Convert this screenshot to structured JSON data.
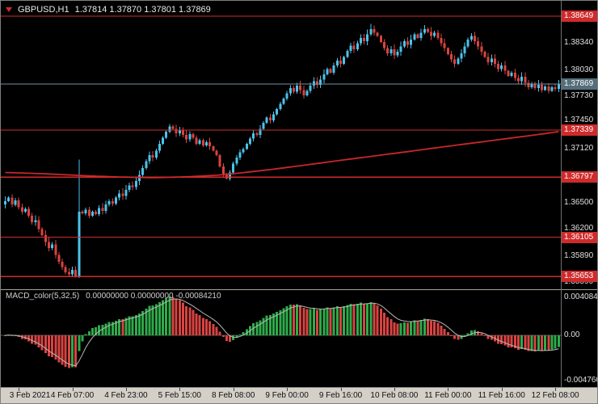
{
  "titlebar": {
    "symbol_period": "GBPUSD,H1",
    "ohlc_line": "1.37814 1.37870 1.37801 1.37869"
  },
  "colors": {
    "up": "#4cc2ea",
    "down": "#d94341",
    "level": "#cf2b2b",
    "ma": "#c62828",
    "macd_up": "#2eab4a",
    "macd_down": "#d94341",
    "signal": "#b8b8b8",
    "bid_line": "#6d94a8",
    "bid_badge": "#546e7a",
    "axis_text": "#e0e0e0",
    "time_bg": "#d4d0c8"
  },
  "chart_data": {
    "type": "candlestick+macd",
    "symbol": "GBPUSD",
    "timeframe": "H1",
    "title": "GBPUSD,H1  1.37814 1.37870 1.37801 1.37869",
    "price_axis": {
      "ylim": [
        1.35515,
        1.38826
      ],
      "ticks": [
        1.3834,
        1.3803,
        1.3773,
        1.3745,
        1.3712,
        1.365,
        1.362,
        1.3589,
        1.3559
      ],
      "levels": [
        1.38649,
        1.37339,
        1.36797,
        1.36105,
        1.35653
      ],
      "current": 1.37869
    },
    "x_axis": {
      "labels": [
        {
          "text": "3 Feb 2021",
          "bar": 4
        },
        {
          "text": "4 Feb 07:00",
          "bar": 20
        },
        {
          "text": "4 Feb 23:00",
          "bar": 36
        },
        {
          "text": "5 Feb 15:00",
          "bar": 52
        },
        {
          "text": "8 Feb 08:00",
          "bar": 68
        },
        {
          "text": "9 Feb 00:00",
          "bar": 84
        },
        {
          "text": "9 Feb 16:00",
          "bar": 100
        },
        {
          "text": "10 Feb 08:00",
          "bar": 116
        },
        {
          "text": "11 Feb 00:00",
          "bar": 132
        },
        {
          "text": "11 Feb 16:00",
          "bar": 148
        },
        {
          "text": "12 Feb 08:00",
          "bar": 164
        }
      ]
    },
    "candles": {
      "first_open": 1.3648,
      "wick": 0.0004,
      "closes": [
        1.3652,
        1.3656,
        1.3648,
        1.3653,
        1.3645,
        1.364,
        1.3643,
        1.3635,
        1.3628,
        1.363,
        1.362,
        1.3613,
        1.3605,
        1.3598,
        1.3602,
        1.359,
        1.3582,
        1.3576,
        1.357,
        1.3568,
        1.3573,
        1.3566,
        1.364,
        1.3638,
        1.3642,
        1.3635,
        1.364,
        1.3637,
        1.3644,
        1.3641,
        1.3648,
        1.3652,
        1.3649,
        1.3656,
        1.3661,
        1.3658,
        1.3665,
        1.367,
        1.3668,
        1.3675,
        1.3682,
        1.369,
        1.3698,
        1.3705,
        1.3702,
        1.371,
        1.3718,
        1.3725,
        1.3732,
        1.3738,
        1.3735,
        1.373,
        1.3734,
        1.3728,
        1.3723,
        1.3729,
        1.3725,
        1.3718,
        1.3722,
        1.3716,
        1.372,
        1.3715,
        1.371,
        1.3705,
        1.3692,
        1.3682,
        1.3678,
        1.3685,
        1.3695,
        1.3702,
        1.3708,
        1.3712,
        1.3718,
        1.3724,
        1.373,
        1.3728,
        1.3735,
        1.3742,
        1.3748,
        1.3745,
        1.3752,
        1.3758,
        1.3764,
        1.377,
        1.3776,
        1.3782,
        1.3778,
        1.3785,
        1.378,
        1.3774,
        1.3779,
        1.3785,
        1.379,
        1.3786,
        1.3792,
        1.3798,
        1.3804,
        1.38,
        1.3808,
        1.3814,
        1.381,
        1.3818,
        1.3825,
        1.3831,
        1.3827,
        1.3834,
        1.384,
        1.3836,
        1.3844,
        1.385,
        1.3846,
        1.3842,
        1.3835,
        1.3828,
        1.3822,
        1.3827,
        1.382,
        1.3824,
        1.383,
        1.3836,
        1.3832,
        1.3838,
        1.3844,
        1.384,
        1.3846,
        1.385,
        1.3847,
        1.3842,
        1.3846,
        1.384,
        1.3834,
        1.3828,
        1.3821,
        1.3815,
        1.381,
        1.3816,
        1.3822,
        1.383,
        1.3838,
        1.3842,
        1.3836,
        1.383,
        1.3824,
        1.3818,
        1.3812,
        1.3816,
        1.381,
        1.3804,
        1.3808,
        1.3802,
        1.3796,
        1.38,
        1.3794,
        1.379,
        1.3795,
        1.3788,
        1.3783,
        1.3787,
        1.3782,
        1.3786,
        1.378,
        1.3784,
        1.3779,
        1.3783,
        1.3781,
        1.37869
      ],
      "overrides": {
        "21": {
          "l": 1.3564
        },
        "22": {
          "h": 1.37,
          "l": 1.35635
        },
        "66": {
          "l": 1.3677
        },
        "109": {
          "h": 1.3856
        },
        "125": {
          "h": 1.38545
        }
      }
    },
    "ma": {
      "points": [
        [
          0,
          1.3685
        ],
        [
          12,
          1.36835
        ],
        [
          24,
          1.36812
        ],
        [
          34,
          1.36798
        ],
        [
          44,
          1.3679
        ],
        [
          54,
          1.368
        ],
        [
          63,
          1.36818
        ],
        [
          71,
          1.36848
        ],
        [
          80,
          1.36888
        ],
        [
          90,
          1.36938
        ],
        [
          100,
          1.3699
        ],
        [
          110,
          1.3704
        ],
        [
          120,
          1.3709
        ],
        [
          130,
          1.37142
        ],
        [
          140,
          1.37192
        ],
        [
          150,
          1.37242
        ],
        [
          158,
          1.37282
        ],
        [
          165,
          1.3732
        ]
      ]
    },
    "macd": {
      "label": "MACD_color(5,32,5)",
      "values_line": "0.00000000 0.00000000 -0.00084210",
      "params": {
        "fast": 5,
        "slow": 32,
        "signal": 5
      },
      "axis_labels": [
        "0.0040840",
        "0.00",
        "-0.0047600"
      ],
      "axis_values": [
        0.004084,
        0,
        -0.00476
      ]
    }
  }
}
